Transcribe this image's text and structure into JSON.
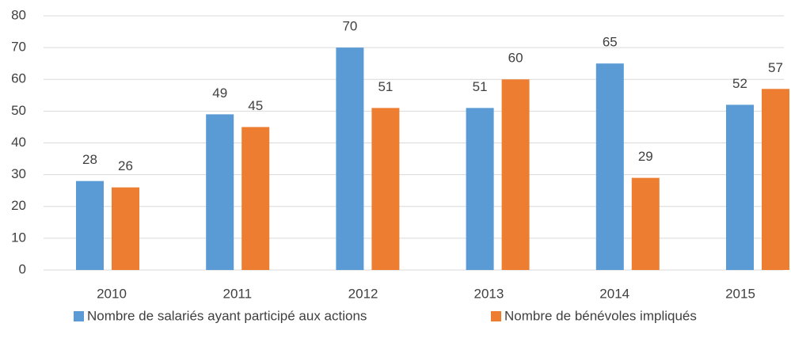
{
  "chart_data": {
    "type": "bar",
    "categories": [
      "2010",
      "2011",
      "2012",
      "2013",
      "2014",
      "2015"
    ],
    "series": [
      {
        "name": "Nombre de salariés ayant participé aux actions",
        "color": "#5b9bd5",
        "values": [
          28,
          49,
          70,
          51,
          65,
          52
        ]
      },
      {
        "name": "Nombre de bénévoles impliqués",
        "color": "#ed7d31",
        "values": [
          26,
          45,
          51,
          60,
          29,
          57
        ]
      }
    ],
    "ylim": [
      0,
      80
    ],
    "yticks": [
      0,
      10,
      20,
      30,
      40,
      50,
      60,
      70,
      80
    ],
    "grid": true,
    "legend": "bottom"
  }
}
